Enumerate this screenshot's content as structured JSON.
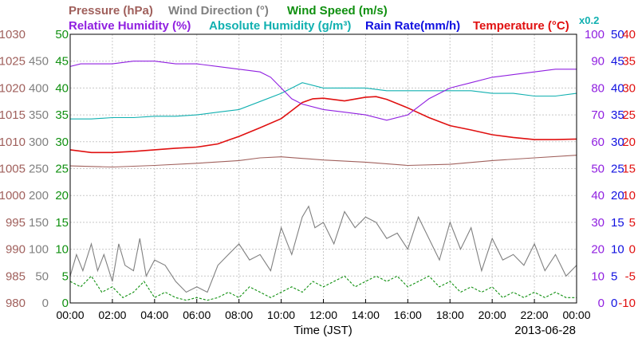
{
  "chart_data": {
    "type": "line",
    "date": "2013-06-28",
    "xlabel": "Time (JST)",
    "x_ticks": [
      "00:00",
      "02:00",
      "04:00",
      "06:00",
      "08:00",
      "10:00",
      "12:00",
      "14:00",
      "16:00",
      "18:00",
      "20:00",
      "22:00",
      "00:00"
    ],
    "legend": [
      {
        "text": "Pressure (hPa)",
        "color": "#a0605c"
      },
      {
        "text": "Wind Direction (°)",
        "color": "#808080"
      },
      {
        "text": "Wind Speed (m/s)",
        "color": "#109010"
      },
      {
        "text": "Relative Humidity (%)",
        "color": "#9020e0"
      },
      {
        "text": "Absolute Humidity (g/m³)",
        "color": "#10b0b0"
      },
      {
        "text": "Rain Rate(mm/h)",
        "color": "#1010e0"
      },
      {
        "text": "Temperature (°C)",
        "color": "#e01010"
      }
    ],
    "rain_scale_note": "x0.2",
    "axes": {
      "pressure": {
        "color": "#a0605c",
        "ticks": [
          "1030",
          "1025",
          "1020",
          "1015",
          "1010",
          "1005",
          "1000",
          "995",
          "990",
          "985",
          "980"
        ],
        "range": [
          980,
          1030
        ]
      },
      "wind_dir": {
        "color": "#808080",
        "ticks": [
          "450",
          "400",
          "350",
          "300",
          "250",
          "200",
          "150",
          "100",
          "50",
          "0"
        ],
        "range": [
          0,
          500
        ]
      },
      "wind_speed": {
        "color": "#109010",
        "ticks": [
          "50",
          "45",
          "40",
          "35",
          "30",
          "25",
          "20",
          "15",
          "10",
          "5",
          "0"
        ],
        "range": [
          0,
          50
        ]
      },
      "humidity": {
        "color": "#9020e0",
        "ticks": [
          "100",
          "90",
          "80",
          "70",
          "60",
          "50",
          "40",
          "30",
          "20",
          "10",
          "0"
        ],
        "range": [
          0,
          100
        ]
      },
      "rain": {
        "color": "#1010e0",
        "ticks": [
          "50",
          "45",
          "40",
          "35",
          "30",
          "25",
          "20",
          "15",
          "10",
          "5",
          "0"
        ],
        "range": [
          0,
          50
        ]
      },
      "temp": {
        "color": "#e01010",
        "ticks": [
          "40",
          "35",
          "30",
          "25",
          "20",
          "15",
          "10",
          "5",
          "0",
          "-5",
          "-10"
        ],
        "range": [
          -10,
          40
        ]
      }
    },
    "series": [
      {
        "name": "Temperature (°C)",
        "axis": "temp",
        "color": "#e01010",
        "x": [
          0,
          1,
          2,
          3,
          4,
          5,
          6,
          7,
          7.5,
          8,
          9,
          10,
          10.5,
          11,
          11.5,
          12,
          13,
          14,
          14.5,
          15,
          16,
          17,
          18,
          19,
          20,
          21,
          22,
          23,
          24
        ],
        "y": [
          18.5,
          18.0,
          18.0,
          18.2,
          18.5,
          18.8,
          19.0,
          19.6,
          20.3,
          21.0,
          22.6,
          24.3,
          25.8,
          27.3,
          28.0,
          28.1,
          27.6,
          28.3,
          28.4,
          27.9,
          26.3,
          24.5,
          23.0,
          22.2,
          21.3,
          20.8,
          20.4,
          20.4,
          20.5
        ]
      },
      {
        "name": "Absolute Humidity (g/m³)",
        "axis": "humidity",
        "color": "#10b0b0",
        "x": [
          0,
          1,
          2,
          3,
          4,
          5,
          6,
          7,
          8,
          9,
          10,
          11,
          12,
          13,
          14,
          15,
          16,
          17,
          18,
          19,
          20,
          21,
          22,
          23,
          24
        ],
        "y": [
          68.5,
          68.5,
          69,
          69,
          69.5,
          69.5,
          70,
          71,
          72,
          75,
          78,
          82,
          80,
          80,
          80,
          79,
          79,
          79,
          79,
          79,
          78,
          78,
          77,
          77,
          78
        ]
      },
      {
        "name": "Relative Humidity (%)",
        "axis": "humidity",
        "color": "#9020e0",
        "x": [
          0,
          0.5,
          1,
          2,
          3,
          4,
          5,
          6,
          7,
          8,
          9,
          9.5,
          10,
          10.5,
          11,
          12,
          13,
          14,
          15,
          16,
          17,
          18,
          19,
          20,
          21,
          22,
          23,
          24
        ],
        "y": [
          88,
          89,
          89,
          89,
          90,
          90,
          89,
          89,
          88,
          87,
          86,
          84,
          80,
          76,
          74,
          72,
          71,
          70,
          68,
          70,
          76,
          80,
          82,
          84,
          85,
          86,
          87,
          87
        ]
      },
      {
        "name": "Pressure (hPa)",
        "axis": "pressure",
        "color": "#a0605c",
        "x": [
          0,
          2,
          4,
          6,
          8,
          9,
          10,
          12,
          14,
          16,
          18,
          20,
          22,
          24
        ],
        "y": [
          1005.5,
          1005.3,
          1005.6,
          1006,
          1006.5,
          1007,
          1007.2,
          1006.6,
          1006.2,
          1005.6,
          1005.8,
          1006.5,
          1007,
          1007.5
        ]
      },
      {
        "name": "Wind Direction (°)",
        "axis": "wind_dir",
        "color": "#808080",
        "x": [
          0,
          0.3,
          0.6,
          1,
          1.3,
          1.6,
          2,
          2.3,
          2.6,
          3,
          3.3,
          3.6,
          4,
          4.5,
          5,
          5.5,
          6,
          6.5,
          7,
          7.5,
          8,
          8.5,
          9,
          9.5,
          10,
          10.5,
          11,
          11.3,
          11.6,
          12,
          12.5,
          13,
          13.5,
          14,
          14.5,
          15,
          15.5,
          16,
          16.5,
          17,
          17.5,
          18,
          18.5,
          19,
          19.5,
          20,
          20.5,
          21,
          21.5,
          22,
          22.5,
          23,
          23.5,
          24
        ],
        "y": [
          50,
          90,
          60,
          110,
          60,
          90,
          40,
          110,
          70,
          60,
          120,
          50,
          80,
          70,
          40,
          20,
          30,
          20,
          70,
          90,
          110,
          80,
          90,
          60,
          140,
          90,
          160,
          180,
          140,
          150,
          110,
          170,
          140,
          160,
          150,
          120,
          130,
          100,
          160,
          120,
          80,
          150,
          100,
          140,
          60,
          120,
          80,
          90,
          70,
          110,
          60,
          90,
          50,
          70
        ]
      },
      {
        "name": "Wind Speed (m/s)",
        "axis": "wind_speed",
        "color": "#109010",
        "x": [
          0,
          0.5,
          1,
          1.5,
          2,
          2.5,
          3,
          3.5,
          4,
          4.5,
          5,
          5.5,
          6,
          6.5,
          7,
          7.5,
          8,
          8.5,
          9,
          9.5,
          10,
          10.5,
          11,
          11.5,
          12,
          12.5,
          13,
          13.5,
          14,
          14.5,
          15,
          15.5,
          16,
          16.5,
          17,
          17.5,
          18,
          18.5,
          19,
          19.5,
          20,
          20.5,
          21,
          21.5,
          22,
          22.5,
          23,
          23.5,
          24
        ],
        "y": [
          4,
          3,
          5,
          2,
          3,
          1,
          2,
          4,
          1,
          2,
          1,
          0.5,
          1,
          0.5,
          1,
          2,
          1,
          3,
          2,
          1,
          2,
          3,
          2,
          4,
          3,
          4,
          5,
          3,
          4,
          5,
          4,
          5,
          3,
          4,
          5,
          3,
          4,
          2,
          3,
          2,
          3,
          1,
          2,
          1,
          2,
          1,
          2,
          1,
          1
        ]
      },
      {
        "name": "Rain Rate(mm/h)",
        "axis": "rain",
        "color": "#1010e0",
        "x": [
          0,
          24
        ],
        "y": [
          0,
          0
        ]
      }
    ]
  }
}
